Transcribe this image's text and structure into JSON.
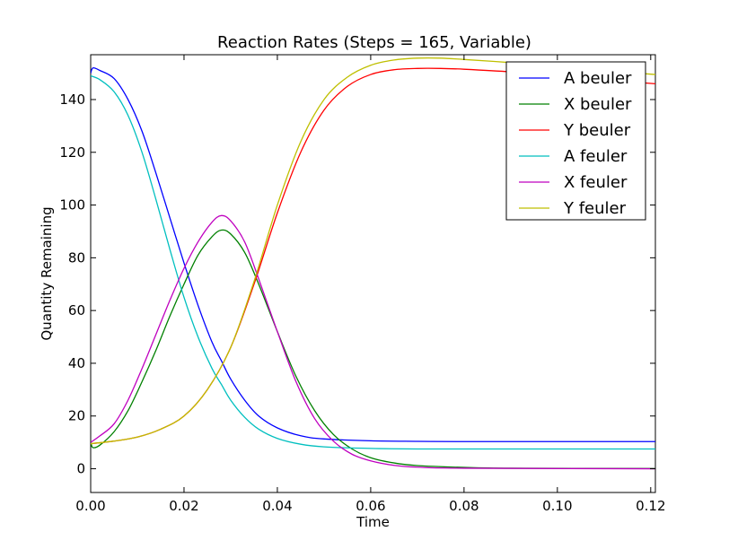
{
  "chart_data": {
    "type": "line",
    "title": "Reaction Rates (Steps = 165, Variable)",
    "xlabel": "Time",
    "ylabel": "Quantity Remaining",
    "xlim": [
      0.0,
      0.121
    ],
    "ylim": [
      -9,
      157
    ],
    "grid": false,
    "legend_position": "top-right",
    "x_ticks": [
      {
        "value": 0.0,
        "label": "0.00"
      },
      {
        "value": 0.02,
        "label": "0.02"
      },
      {
        "value": 0.04,
        "label": "0.04"
      },
      {
        "value": 0.06,
        "label": "0.06"
      },
      {
        "value": 0.08,
        "label": "0.08"
      },
      {
        "value": 0.1,
        "label": "0.10"
      },
      {
        "value": 0.12,
        "label": "0.12"
      }
    ],
    "y_ticks": [
      {
        "value": 0,
        "label": "0"
      },
      {
        "value": 20,
        "label": "20"
      },
      {
        "value": 40,
        "label": "40"
      },
      {
        "value": 60,
        "label": "60"
      },
      {
        "value": 80,
        "label": "80"
      },
      {
        "value": 100,
        "label": "100"
      },
      {
        "value": 120,
        "label": "120"
      },
      {
        "value": 140,
        "label": "140"
      }
    ],
    "series": [
      {
        "name": "A beuler",
        "color": "#0000ff",
        "points": [
          [
            0.0,
            150
          ],
          [
            0.0005,
            152
          ],
          [
            0.002,
            151
          ],
          [
            0.005,
            148
          ],
          [
            0.008,
            140
          ],
          [
            0.011,
            128
          ],
          [
            0.014,
            112
          ],
          [
            0.017,
            95
          ],
          [
            0.02,
            78
          ],
          [
            0.023,
            62
          ],
          [
            0.026,
            48
          ],
          [
            0.028,
            41
          ],
          [
            0.03,
            34
          ],
          [
            0.033,
            26
          ],
          [
            0.036,
            20
          ],
          [
            0.04,
            15.5
          ],
          [
            0.045,
            12.5
          ],
          [
            0.05,
            11.3
          ],
          [
            0.06,
            10.6
          ],
          [
            0.07,
            10.4
          ],
          [
            0.08,
            10.3
          ],
          [
            0.1,
            10.3
          ],
          [
            0.121,
            10.3
          ]
        ]
      },
      {
        "name": "X beuler",
        "color": "#008000",
        "points": [
          [
            0.0,
            10
          ],
          [
            0.0005,
            8
          ],
          [
            0.002,
            9
          ],
          [
            0.005,
            14
          ],
          [
            0.008,
            22
          ],
          [
            0.011,
            33
          ],
          [
            0.014,
            45
          ],
          [
            0.017,
            58
          ],
          [
            0.02,
            70
          ],
          [
            0.023,
            81
          ],
          [
            0.026,
            88
          ],
          [
            0.028,
            90.5
          ],
          [
            0.03,
            89
          ],
          [
            0.033,
            82
          ],
          [
            0.036,
            70
          ],
          [
            0.04,
            52
          ],
          [
            0.044,
            35
          ],
          [
            0.048,
            22
          ],
          [
            0.052,
            13
          ],
          [
            0.056,
            7.5
          ],
          [
            0.06,
            4.2
          ],
          [
            0.065,
            2.2
          ],
          [
            0.07,
            1.2
          ],
          [
            0.08,
            0.5
          ],
          [
            0.09,
            0.2
          ],
          [
            0.121,
            0.1
          ]
        ]
      },
      {
        "name": "Y beuler",
        "color": "#ff0000",
        "points": [
          [
            0.0,
            9.5
          ],
          [
            0.005,
            10.5
          ],
          [
            0.01,
            12
          ],
          [
            0.015,
            15
          ],
          [
            0.02,
            20
          ],
          [
            0.025,
            30
          ],
          [
            0.03,
            46
          ],
          [
            0.035,
            70
          ],
          [
            0.04,
            97
          ],
          [
            0.045,
            120
          ],
          [
            0.05,
            136
          ],
          [
            0.055,
            145
          ],
          [
            0.06,
            149.5
          ],
          [
            0.065,
            151.3
          ],
          [
            0.07,
            151.8
          ],
          [
            0.075,
            151.8
          ],
          [
            0.08,
            151.5
          ],
          [
            0.09,
            150.5
          ],
          [
            0.1,
            149
          ],
          [
            0.11,
            147.5
          ],
          [
            0.121,
            146
          ]
        ]
      },
      {
        "name": "A feuler",
        "color": "#00bfbf",
        "points": [
          [
            0.0,
            149
          ],
          [
            0.002,
            147.5
          ],
          [
            0.005,
            143
          ],
          [
            0.008,
            134
          ],
          [
            0.011,
            120
          ],
          [
            0.014,
            102
          ],
          [
            0.017,
            83
          ],
          [
            0.02,
            65
          ],
          [
            0.023,
            50
          ],
          [
            0.026,
            38
          ],
          [
            0.028,
            32
          ],
          [
            0.03,
            26
          ],
          [
            0.033,
            19.5
          ],
          [
            0.036,
            15
          ],
          [
            0.04,
            11.5
          ],
          [
            0.045,
            9.3
          ],
          [
            0.05,
            8.3
          ],
          [
            0.06,
            7.7
          ],
          [
            0.07,
            7.5
          ],
          [
            0.08,
            7.5
          ],
          [
            0.1,
            7.5
          ],
          [
            0.121,
            7.5
          ]
        ]
      },
      {
        "name": "X feuler",
        "color": "#bf00bf",
        "points": [
          [
            0.0,
            10
          ],
          [
            0.002,
            12.5
          ],
          [
            0.005,
            17
          ],
          [
            0.008,
            26
          ],
          [
            0.011,
            38
          ],
          [
            0.014,
            51
          ],
          [
            0.017,
            64
          ],
          [
            0.02,
            76
          ],
          [
            0.023,
            86
          ],
          [
            0.026,
            93.5
          ],
          [
            0.028,
            96
          ],
          [
            0.03,
            94
          ],
          [
            0.033,
            86
          ],
          [
            0.036,
            72
          ],
          [
            0.04,
            52
          ],
          [
            0.044,
            33
          ],
          [
            0.048,
            19
          ],
          [
            0.052,
            10.5
          ],
          [
            0.056,
            5.5
          ],
          [
            0.06,
            3
          ],
          [
            0.065,
            1.3
          ],
          [
            0.07,
            0.6
          ],
          [
            0.08,
            0.2
          ],
          [
            0.121,
            0.0
          ]
        ]
      },
      {
        "name": "Y feuler",
        "color": "#bfbf00",
        "points": [
          [
            0.0,
            9.5
          ],
          [
            0.005,
            10.5
          ],
          [
            0.01,
            12
          ],
          [
            0.015,
            15
          ],
          [
            0.02,
            20
          ],
          [
            0.025,
            30
          ],
          [
            0.03,
            46
          ],
          [
            0.035,
            71
          ],
          [
            0.04,
            100
          ],
          [
            0.045,
            124
          ],
          [
            0.05,
            140
          ],
          [
            0.055,
            148.5
          ],
          [
            0.06,
            153
          ],
          [
            0.065,
            155
          ],
          [
            0.07,
            155.7
          ],
          [
            0.075,
            155.7
          ],
          [
            0.08,
            155.2
          ],
          [
            0.09,
            154
          ],
          [
            0.1,
            152.5
          ],
          [
            0.11,
            151
          ],
          [
            0.121,
            149.5
          ]
        ]
      }
    ]
  }
}
